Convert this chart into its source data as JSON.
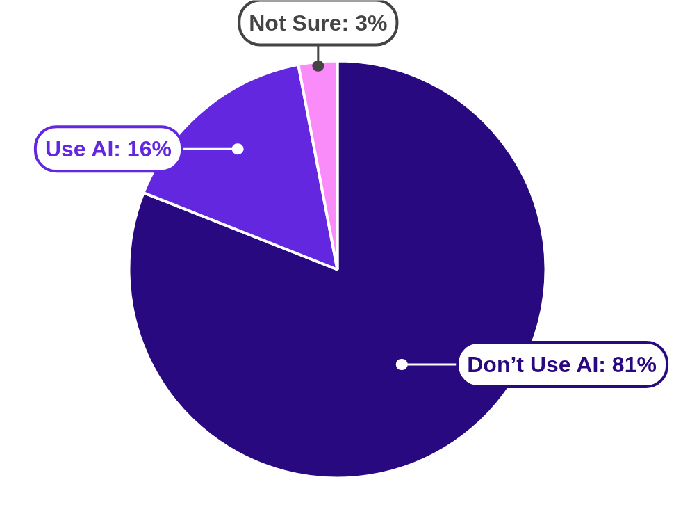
{
  "chart_data": {
    "type": "pie",
    "categories": [
      "Don’t Use AI",
      "Use AI",
      "Not Sure"
    ],
    "values": [
      81,
      16,
      3
    ],
    "colors": [
      "#28097f",
      "#6327e0",
      "#f98cf8"
    ],
    "value_labels": [
      "81%",
      "16%",
      "3%"
    ]
  }
}
